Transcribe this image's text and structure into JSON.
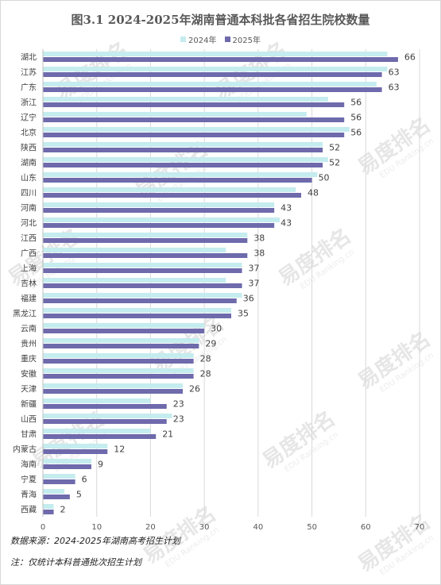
{
  "chart_data": {
    "type": "bar",
    "orientation": "horizontal",
    "title": "图3.1  2024-2025年湖南普通本科批各省招生院校数量",
    "categories": [
      "湖北",
      "江苏",
      "广东",
      "浙江",
      "辽宁",
      "北京",
      "陕西",
      "湖南",
      "山东",
      "四川",
      "河南",
      "河北",
      "江西",
      "广西",
      "上海",
      "吉林",
      "福建",
      "黑龙江",
      "云南",
      "贵州",
      "重庆",
      "安徽",
      "天津",
      "新疆",
      "山西",
      "甘肃",
      "内蒙古",
      "海南",
      "宁夏",
      "青海",
      "西藏"
    ],
    "series": [
      {
        "name": "2024年",
        "color": "#c5ecee",
        "values": [
          64,
          64,
          62,
          53,
          49,
          57,
          52,
          53,
          51,
          47,
          43,
          44,
          38,
          34,
          37,
          34,
          37,
          35,
          30,
          29,
          28,
          28,
          26,
          20,
          24,
          20,
          12,
          9,
          6,
          4,
          2
        ]
      },
      {
        "name": "2025年",
        "color": "#6e6aac",
        "values": [
          66,
          63,
          63,
          56,
          56,
          56,
          52,
          52,
          50,
          48,
          43,
          43,
          38,
          38,
          37,
          37,
          36,
          35,
          30,
          29,
          28,
          28,
          26,
          23,
          23,
          21,
          12,
          9,
          6,
          5,
          2
        ]
      }
    ],
    "data_labels_series": "2025年",
    "xlim": [
      0,
      70
    ],
    "xticks": [
      0,
      10,
      20,
      30,
      40,
      50,
      60,
      70
    ],
    "grid": true,
    "legend_position": "top"
  },
  "watermark": {
    "text": "易度排名",
    "subtext": "EDU Ranking.cn"
  },
  "notes": {
    "source": "数据来源：2024-2025年湖南高考招生计划",
    "remark": "注：仅统计本科普通批次招生计划"
  }
}
